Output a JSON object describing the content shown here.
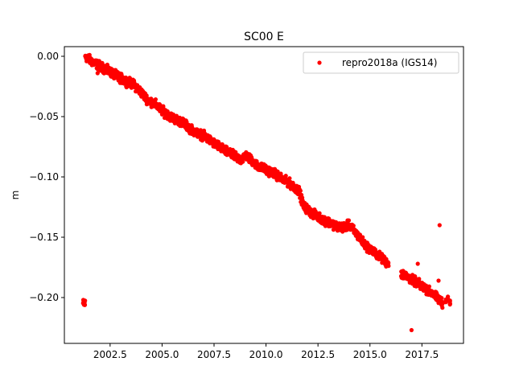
{
  "chart_data": {
    "type": "scatter",
    "title": "SC00 E",
    "xlabel": "",
    "ylabel": "m",
    "xlim": [
      2000.3,
      2019.5
    ],
    "ylim": [
      -0.238,
      0.008
    ],
    "xticks": [
      2002.5,
      2005.0,
      2007.5,
      2010.0,
      2012.5,
      2015.0,
      2017.5
    ],
    "xtick_labels": [
      "2002.5",
      "2005.0",
      "2007.5",
      "2010.0",
      "2012.5",
      "2015.0",
      "2017.5"
    ],
    "yticks": [
      0.0,
      -0.05,
      -0.1,
      -0.15,
      -0.2
    ],
    "ytick_labels": [
      "0.00",
      "−0.05",
      "−0.10",
      "−0.15",
      "−0.20"
    ],
    "grid": false,
    "legend": {
      "placement": "top-right",
      "entries": [
        "repro2018a (IGS14)"
      ]
    },
    "series": [
      {
        "name": "repro2018a (IGS14)",
        "color": "#ff0000",
        "marker": "circle",
        "trend": [
          [
            2001.3,
            0.0
          ],
          [
            2001.6,
            -0.004
          ],
          [
            2002.0,
            -0.008
          ],
          [
            2002.4,
            -0.012
          ],
          [
            2002.8,
            -0.016
          ],
          [
            2003.2,
            -0.02
          ],
          [
            2003.6,
            -0.023
          ],
          [
            2003.9,
            -0.028
          ],
          [
            2004.3,
            -0.036
          ],
          [
            2004.7,
            -0.04
          ],
          [
            2005.0,
            -0.045
          ],
          [
            2005.5,
            -0.051
          ],
          [
            2006.0,
            -0.055
          ],
          [
            2006.5,
            -0.062
          ],
          [
            2007.0,
            -0.066
          ],
          [
            2007.5,
            -0.072
          ],
          [
            2008.0,
            -0.078
          ],
          [
            2008.4,
            -0.082
          ],
          [
            2008.8,
            -0.086
          ],
          [
            2009.0,
            -0.082
          ],
          [
            2009.3,
            -0.086
          ],
          [
            2009.6,
            -0.091
          ],
          [
            2010.0,
            -0.094
          ],
          [
            2010.4,
            -0.097
          ],
          [
            2010.8,
            -0.102
          ],
          [
            2011.2,
            -0.106
          ],
          [
            2011.6,
            -0.112
          ],
          [
            2011.8,
            -0.124
          ],
          [
            2012.2,
            -0.13
          ],
          [
            2012.7,
            -0.135
          ],
          [
            2013.2,
            -0.139
          ],
          [
            2013.6,
            -0.142
          ],
          [
            2014.0,
            -0.14
          ],
          [
            2014.3,
            -0.146
          ],
          [
            2014.7,
            -0.155
          ],
          [
            2015.0,
            -0.16
          ],
          [
            2015.4,
            -0.165
          ],
          [
            2015.8,
            -0.171
          ],
          [
            2016.5,
            -0.18
          ],
          [
            2016.9,
            -0.184
          ],
          [
            2017.3,
            -0.188
          ],
          [
            2017.7,
            -0.193
          ],
          [
            2018.1,
            -0.198
          ],
          [
            2018.5,
            -0.205
          ]
        ],
        "segments": [
          [
            2001.2,
            2015.9
          ],
          [
            2016.5,
            2018.5
          ],
          [
            2018.65,
            2018.85
          ]
        ],
        "tail_points": [
          [
            2018.65,
            -0.203
          ],
          [
            2018.75,
            -0.201
          ],
          [
            2018.85,
            -0.204
          ]
        ],
        "outliers": [
          [
            2017.0,
            -0.227
          ],
          [
            2017.3,
            -0.172
          ],
          [
            2018.3,
            -0.186
          ],
          [
            2018.35,
            -0.14
          ],
          [
            2002.9,
            -0.02
          ],
          [
            2003.3,
            -0.019
          ],
          [
            2001.9,
            -0.014
          ]
        ]
      }
    ]
  }
}
